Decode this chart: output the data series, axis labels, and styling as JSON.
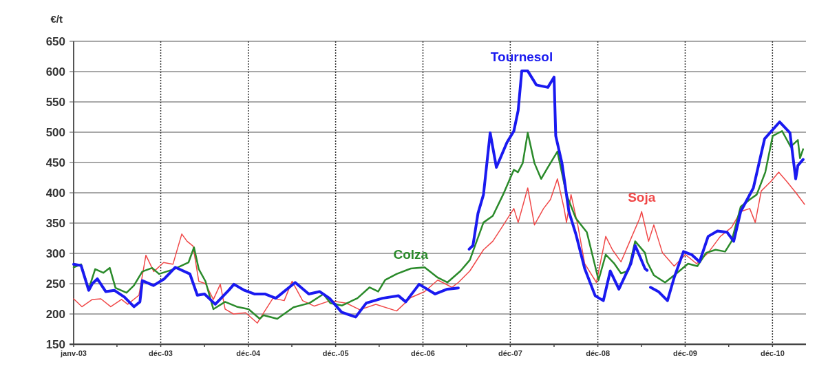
{
  "chart_data": {
    "type": "line",
    "ylabel": "€/t",
    "xlim": [
      "2003-01-01",
      "2011-05-20"
    ],
    "ylim": [
      150,
      650
    ],
    "yticks": [
      150,
      200,
      250,
      300,
      350,
      400,
      450,
      500,
      550,
      600,
      650
    ],
    "xticks": [
      {
        "value": "2003-01-01",
        "label": "janv-03"
      },
      {
        "value": "2003-07-01",
        "label": null
      },
      {
        "value": "2003-12-31",
        "label": "déc-03"
      },
      {
        "value": "2004-07-01",
        "label": null
      },
      {
        "value": "2004-12-31",
        "label": "déc-04"
      },
      {
        "value": "2005-07-01",
        "label": null
      },
      {
        "value": "2005-12-31",
        "label": "déc.-05"
      },
      {
        "value": "2006-07-01",
        "label": null
      },
      {
        "value": "2006-12-31",
        "label": "déc-06"
      },
      {
        "value": "2007-07-01",
        "label": null
      },
      {
        "value": "2007-12-31",
        "label": "déc-07"
      },
      {
        "value": "2008-07-01",
        "label": null
      },
      {
        "value": "2008-12-31",
        "label": "déc-08"
      },
      {
        "value": "2009-07-01",
        "label": null
      },
      {
        "value": "2009-12-31",
        "label": "déc-09"
      },
      {
        "value": "2010-07-01",
        "label": null
      },
      {
        "value": "2010-12-31",
        "label": "déc-10"
      }
    ],
    "grid": true,
    "line_style": "solid",
    "marker": "none",
    "series": [
      {
        "name": "Soja",
        "color": "#f04848",
        "x": [
          "2003-01-01",
          "2003-02-05",
          "2003-03-20",
          "2003-04-25",
          "2003-06-05",
          "2003-07-20",
          "2003-08-15",
          "2003-10-01",
          "2003-10-30",
          "2003-12-02",
          "2004-01-12",
          "2004-02-20",
          "2004-03-28",
          "2004-04-19",
          "2004-05-14",
          "2004-06-07",
          "2004-07-05",
          "2004-08-07",
          "2004-09-05",
          "2004-09-25",
          "2004-10-30",
          "2004-12-20",
          "2005-02-07",
          "2005-02-17",
          "2005-04-13",
          "2005-05-30",
          "2005-07-02",
          "2005-08-15",
          "2005-10-03",
          "2005-12-09",
          "2006-02-13",
          "2006-04-11",
          "2006-06-17",
          "2006-09-12",
          "2006-11-10",
          "2007-01-07",
          "2007-03-03",
          "2007-05-01",
          "2007-05-28",
          "2007-07-15",
          "2007-09-10",
          "2007-10-19",
          "2007-11-26",
          "2008-01-15",
          "2008-02-02",
          "2008-03-13",
          "2008-04-10",
          "2008-05-18",
          "2008-06-16",
          "2008-07-15",
          "2008-08-12",
          "2008-08-22",
          "2008-09-10",
          "2008-10-08",
          "2008-11-06",
          "2008-12-25",
          "2009-02-02",
          "2009-03-02",
          "2009-04-07",
          "2009-05-18",
          "2009-06-24",
          "2009-07-02",
          "2009-07-31",
          "2009-08-22",
          "2009-09-27",
          "2009-11-15",
          "2010-01-01",
          "2010-02-17",
          "2010-04-06",
          "2010-05-27",
          "2010-07-13",
          "2010-08-20",
          "2010-09-27",
          "2010-10-20",
          "2010-11-14",
          "2010-12-25",
          "2011-01-26",
          "2011-02-28",
          "2011-04-08",
          "2011-05-14"
        ],
        "values": [
          225,
          212,
          224,
          225,
          212,
          224,
          216,
          231,
          297,
          270,
          285,
          282,
          332,
          320,
          312,
          254,
          250,
          224,
          249,
          208,
          200,
          202,
          185,
          192,
          226,
          222,
          254,
          222,
          213,
          222,
          218,
          207,
          216,
          205,
          227,
          237,
          256,
          244,
          252,
          271,
          306,
          320,
          343,
          374,
          351,
          408,
          347,
          374,
          389,
          423,
          374,
          351,
          397,
          347,
          283,
          252,
          328,
          306,
          286,
          324,
          358,
          369,
          320,
          347,
          301,
          279,
          298,
          283,
          301,
          328,
          343,
          369,
          374,
          351,
          403,
          419,
          434,
          419,
          400,
          381
        ]
      },
      {
        "name": "Colza",
        "color": "#2a8a2a",
        "x": [
          "2003-01-01",
          "2003-02-01",
          "2003-03-05",
          "2003-04-01",
          "2003-05-05",
          "2003-06-01",
          "2003-06-25",
          "2003-08-10",
          "2003-09-10",
          "2003-10-15",
          "2003-11-25",
          "2003-12-24",
          "2004-02-25",
          "2004-04-25",
          "2004-05-18",
          "2004-06-07",
          "2004-07-05",
          "2004-08-07",
          "2004-09-25",
          "2004-11-13",
          "2005-01-01",
          "2005-02-17",
          "2005-03-04",
          "2005-05-01",
          "2005-07-08",
          "2005-09-13",
          "2005-11-10",
          "2005-12-09",
          "2006-01-27",
          "2006-04-01",
          "2006-05-22",
          "2006-06-27",
          "2006-07-26",
          "2006-09-12",
          "2006-11-10",
          "2007-01-07",
          "2007-03-03",
          "2007-04-12",
          "2007-06-06",
          "2007-07-15",
          "2007-09-10",
          "2007-10-19",
          "2007-12-01",
          "2008-01-15",
          "2008-02-01",
          "2008-02-21",
          "2008-03-13",
          "2008-04-10",
          "2008-05-08",
          "2008-06-05",
          "2008-07-15",
          "2008-08-22",
          "2008-09-30",
          "2008-11-15",
          "2009-01-03",
          "2009-02-02",
          "2009-03-10",
          "2009-04-07",
          "2009-05-07",
          "2009-06-05",
          "2009-07-16",
          "2009-07-25",
          "2009-08-22",
          "2009-10-08",
          "2009-11-25",
          "2010-01-12",
          "2010-02-20",
          "2010-03-29",
          "2010-05-07",
          "2010-06-16",
          "2010-07-13",
          "2010-08-20",
          "2010-09-27",
          "2010-10-26",
          "2010-12-01",
          "2011-01-01",
          "2011-02-09",
          "2011-03-17",
          "2011-04-16",
          "2011-04-25",
          "2011-05-08"
        ],
        "values": [
          277,
          282,
          241,
          274,
          268,
          276,
          243,
          235,
          247,
          270,
          276,
          266,
          274,
          285,
          310,
          274,
          254,
          208,
          220,
          212,
          208,
          192,
          198,
          192,
          211,
          218,
          233,
          218,
          214,
          226,
          244,
          237,
          256,
          266,
          275,
          277,
          260,
          252,
          271,
          289,
          351,
          362,
          397,
          438,
          434,
          449,
          499,
          449,
          423,
          442,
          468,
          397,
          358,
          335,
          256,
          298,
          283,
          267,
          271,
          320,
          301,
          286,
          264,
          252,
          267,
          283,
          279,
          301,
          306,
          303,
          320,
          377,
          389,
          397,
          434,
          494,
          502,
          476,
          487,
          457,
          472
        ]
      },
      {
        "name": "Tournesol",
        "color": "#1a1af0",
        "x": [
          "2003-01-01",
          "2003-02-01",
          "2003-03-05",
          "2003-03-20",
          "2003-04-10",
          "2003-05-15",
          "2003-06-20",
          "2003-08-01",
          "2003-09-10",
          "2003-10-05",
          "2003-10-15",
          "2003-12-01",
          "2004-01-15",
          "2004-03-01",
          "2004-05-01",
          "2004-06-01",
          "2004-07-01",
          "2004-08-15",
          "2004-10-10",
          "2004-11-01",
          "2004-12-15",
          "2005-01-25",
          "2005-03-10",
          "2005-04-25",
          "2005-07-15",
          "2005-09-10",
          "2005-10-25",
          "2005-12-05",
          "2006-01-25",
          "2006-03-25",
          "2006-05-08",
          "2006-07-15",
          "2006-09-20",
          "2006-10-20",
          "2006-12-15",
          "2007-02-20",
          "2007-04-12",
          "2007-05-28",
          "2007-06-20",
          "2007-07-12",
          "2007-07-28",
          "2007-08-18",
          "2007-09-10",
          "2007-10-08",
          "2007-11-03",
          "2007-12-17",
          "2008-01-15",
          "2008-02-02",
          "2008-02-17",
          "2008-03-13",
          "2008-04-18",
          "2008-06-05",
          "2008-07-01",
          "2008-07-08",
          "2008-08-03",
          "2008-09-01",
          "2008-09-30",
          "2008-11-06",
          "2008-12-20",
          "2009-01-23",
          "2009-02-21",
          "2009-03-29",
          "2009-05-18",
          "2009-06-05",
          "2009-07-16",
          "2009-07-25",
          "2009-08-01",
          "2009-08-08",
          "2009-09-10",
          "2009-10-18",
          "2009-11-15",
          "2009-12-24",
          "2010-01-27",
          "2010-03-01",
          "2010-04-06",
          "2010-05-15",
          "2010-06-24",
          "2010-07-22",
          "2010-08-20",
          "2010-10-12",
          "2010-11-28",
          "2011-01-30",
          "2011-03-14",
          "2011-04-07",
          "2011-04-16",
          "2011-05-08"
        ],
        "values": [
          282,
          280,
          239,
          250,
          258,
          237,
          239,
          228,
          212,
          220,
          255,
          247,
          258,
          277,
          266,
          231,
          233,
          216,
          239,
          249,
          239,
          233,
          233,
          226,
          252,
          233,
          237,
          226,
          203,
          195,
          218,
          226,
          230,
          220,
          249,
          233,
          241,
          243,
          null,
          307,
          313,
          366,
          397,
          499,
          442,
          483,
          502,
          536,
          601,
          601,
          578,
          574,
          591,
          494,
          449,
          369,
          332,
          275,
          230,
          222,
          271,
          241,
          283,
          313,
          275,
          272,
          null,
          244,
          237,
          222,
          260,
          303,
          298,
          286,
          328,
          337,
          335,
          320,
          369,
          408,
          489,
          517,
          499,
          423,
          445,
          455
        ]
      }
    ]
  }
}
